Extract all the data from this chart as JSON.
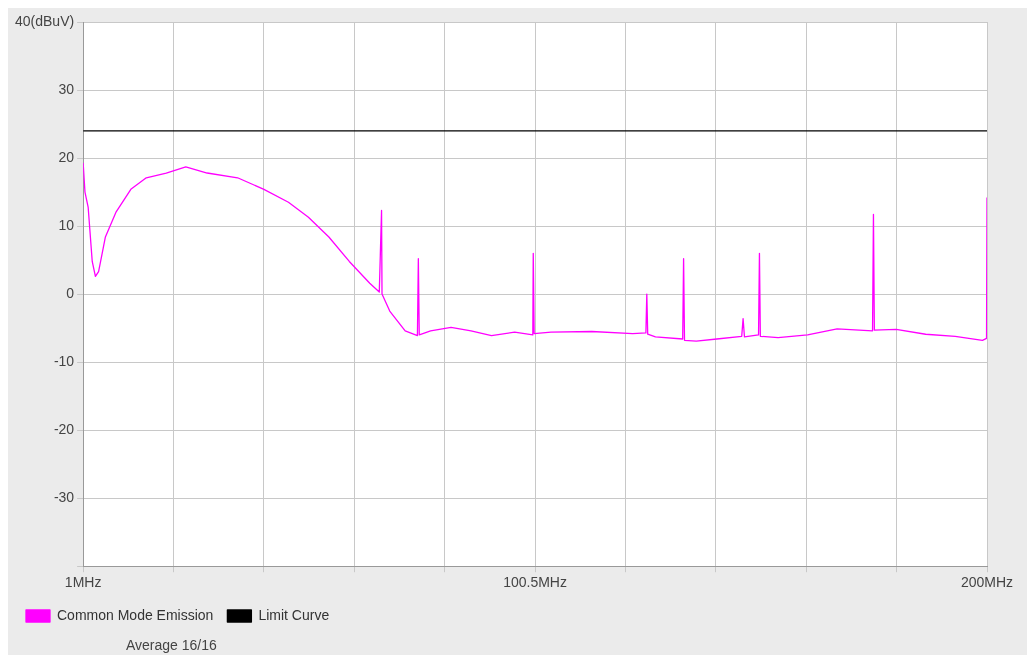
{
  "chart_data": {
    "type": "line",
    "xlim": [
      1,
      200
    ],
    "xticks": [
      {
        "value": 1,
        "label": "1MHz"
      },
      {
        "value": 20.9,
        "label": null
      },
      {
        "value": 40.8,
        "label": null
      },
      {
        "value": 60.7,
        "label": null
      },
      {
        "value": 80.6,
        "label": null
      },
      {
        "value": 100.5,
        "label": "100.5MHz"
      },
      {
        "value": 120.4,
        "label": null
      },
      {
        "value": 140.3,
        "label": null
      },
      {
        "value": 160.2,
        "label": null
      },
      {
        "value": 180.1,
        "label": null
      },
      {
        "value": 200,
        "label": "200MHz"
      }
    ],
    "ylim": [
      -40,
      40
    ],
    "yticks": [
      {
        "value": -40,
        "label": null
      },
      -30,
      -20,
      -10,
      0,
      10,
      20,
      30,
      {
        "value": 40,
        "label": "40(dBuV)"
      }
    ],
    "grid": true,
    "legend": "bottom left",
    "marker": "none",
    "line_style": "solid",
    "annotations": [
      "Average 16/16"
    ],
    "series": [
      {
        "name": "Common Mode Emission",
        "color": "#ff00ff",
        "x": [
          1,
          1.4,
          2.1,
          3.0,
          3.7,
          4.4,
          5.9,
          8.2,
          11.5,
          14.9,
          19.3,
          23.6,
          28.3,
          35,
          40.8,
          46.2,
          50.6,
          55.1,
          59.6,
          64.1,
          66.2,
          66.7,
          66.8,
          68.5,
          71.9,
          74.6,
          74.8,
          75.0,
          77.5,
          82,
          86.4,
          90.9,
          96,
          100,
          100.1,
          100.3,
          104,
          113,
          122,
          124.9,
          125.1,
          125.3,
          127,
          133,
          133.2,
          133.4,
          136,
          140.5,
          146,
          146.3,
          146.6,
          149.7,
          149.9,
          150.1,
          154,
          160.5,
          167,
          174.8,
          175,
          175.2,
          180,
          186.5,
          193,
          199,
          199.9,
          200
        ],
        "values": [
          19.3,
          15,
          12.8,
          4.8,
          2.6,
          3.3,
          8.4,
          12,
          15.4,
          17.1,
          17.8,
          18.7,
          17.8,
          17.1,
          15.4,
          13.5,
          11.3,
          8.4,
          4.8,
          1.6,
          0.3,
          12.3,
          0,
          -2.5,
          -5.4,
          -6.1,
          5.2,
          -6.0,
          -5.4,
          -4.9,
          -5.4,
          -6.1,
          -5.6,
          -6.0,
          6,
          -5.8,
          -5.6,
          -5.5,
          -5.8,
          -5.7,
          0,
          -5.9,
          -6.3,
          -6.6,
          5.2,
          -6.8,
          -6.9,
          -6.6,
          -6.2,
          -3.6,
          -6.3,
          -6.0,
          6,
          -6.2,
          -6.4,
          -6.0,
          -5.1,
          -5.4,
          11.7,
          -5.3,
          -5.2,
          -5.9,
          -6.2,
          -6.8,
          -6.5,
          14.2
        ]
      },
      {
        "name": "Limit Curve",
        "color": "#000000",
        "x": [
          1,
          200
        ],
        "values": [
          24,
          24
        ]
      }
    ]
  }
}
